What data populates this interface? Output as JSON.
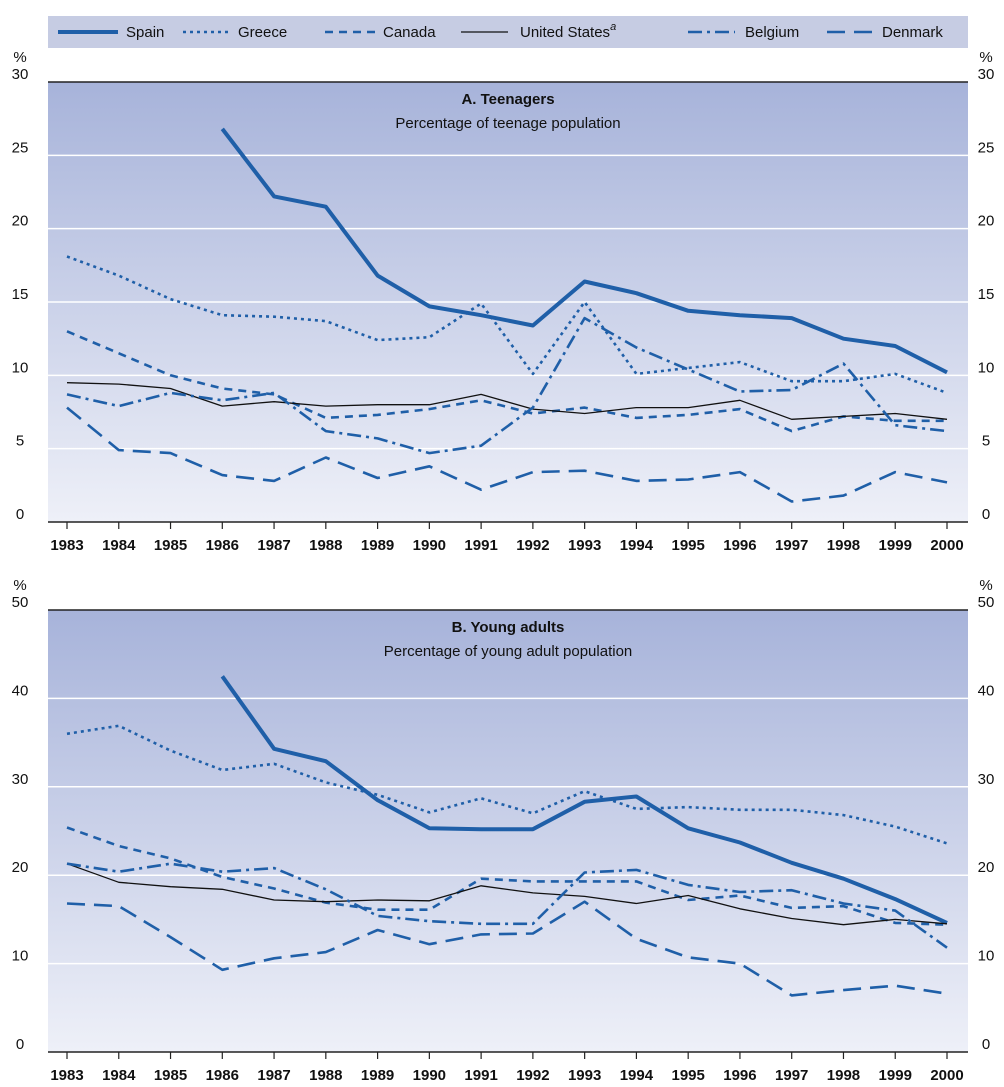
{
  "chart_data": [
    {
      "type": "line",
      "title": "A.  Teenagers",
      "subtitle": "Percentage of teenage population",
      "y_unit": "%",
      "categories": [
        "1983",
        "1984",
        "1985",
        "1986",
        "1987",
        "1988",
        "1989",
        "1990",
        "1991",
        "1992",
        "1993",
        "1994",
        "1995",
        "1996",
        "1997",
        "1998",
        "1999",
        "2000"
      ],
      "ylim": [
        0,
        30
      ],
      "yticks": [
        0,
        5,
        10,
        15,
        20,
        25,
        30
      ],
      "grid": true,
      "series": [
        {
          "name": "Spain",
          "color": "#1f5fa8",
          "style": "solid",
          "values": [
            null,
            null,
            null,
            26.8,
            22.2,
            21.5,
            16.8,
            14.7,
            14.1,
            13.4,
            16.4,
            15.6,
            14.4,
            14.1,
            13.9,
            12.5,
            12.0,
            10.2
          ]
        },
        {
          "name": "Greece",
          "color": "#1f5fa8",
          "style": "dotted",
          "values": [
            18.1,
            16.8,
            15.2,
            14.1,
            14.0,
            13.7,
            12.4,
            12.6,
            14.9,
            10.1,
            15.0,
            10.1,
            10.5,
            10.9,
            9.6,
            9.6,
            10.1,
            8.8
          ]
        },
        {
          "name": "Canada",
          "color": "#1f5fa8",
          "style": "dashed",
          "values": [
            13.0,
            11.5,
            10.0,
            9.1,
            8.7,
            7.1,
            7.3,
            7.7,
            8.3,
            7.4,
            7.8,
            7.1,
            7.3,
            7.7,
            6.2,
            7.2,
            6.9,
            6.9
          ]
        },
        {
          "name": "United States",
          "name_note": "a",
          "color": "#111111",
          "style": "thin",
          "values": [
            9.5,
            9.4,
            9.1,
            7.9,
            8.2,
            7.9,
            8.0,
            8.0,
            8.7,
            7.7,
            7.4,
            7.8,
            7.8,
            8.3,
            7.0,
            7.2,
            7.4,
            7.0
          ]
        },
        {
          "name": "Belgium",
          "color": "#1f5fa8",
          "style": "dashdot",
          "values": [
            8.7,
            7.9,
            8.8,
            8.3,
            8.8,
            6.2,
            5.7,
            4.7,
            5.2,
            7.8,
            13.9,
            11.9,
            10.4,
            8.9,
            9.0,
            10.8,
            6.6,
            6.2
          ]
        },
        {
          "name": "Denmark",
          "color": "#1f5fa8",
          "style": "longdash",
          "values": [
            7.8,
            4.9,
            4.7,
            3.2,
            2.8,
            4.4,
            3.0,
            3.8,
            2.2,
            3.4,
            3.5,
            2.8,
            2.9,
            3.4,
            1.4,
            1.8,
            3.4,
            2.7
          ]
        }
      ]
    },
    {
      "type": "line",
      "title": "B.  Young adults",
      "subtitle": "Percentage of young adult population",
      "y_unit": "%",
      "categories": [
        "1983",
        "1984",
        "1985",
        "1986",
        "1987",
        "1988",
        "1989",
        "1990",
        "1991",
        "1992",
        "1993",
        "1994",
        "1995",
        "1996",
        "1997",
        "1998",
        "1999",
        "2000"
      ],
      "ylim": [
        0,
        50
      ],
      "yticks": [
        0,
        10,
        20,
        30,
        40,
        50
      ],
      "grid": true,
      "series": [
        {
          "name": "Spain",
          "color": "#1f5fa8",
          "style": "solid",
          "values": [
            null,
            null,
            null,
            42.5,
            34.3,
            32.9,
            28.5,
            25.3,
            25.2,
            25.2,
            28.3,
            28.9,
            25.3,
            23.7,
            21.4,
            19.6,
            17.3,
            14.6
          ]
        },
        {
          "name": "Greece",
          "color": "#1f5fa8",
          "style": "dotted",
          "values": [
            36.0,
            36.9,
            34.1,
            31.9,
            32.6,
            30.5,
            29.1,
            27.1,
            28.7,
            27.0,
            29.5,
            27.5,
            27.7,
            27.4,
            27.4,
            26.8,
            25.5,
            23.6
          ]
        },
        {
          "name": "Canada",
          "color": "#1f5fa8",
          "style": "dashed",
          "values": [
            25.4,
            23.3,
            21.9,
            19.8,
            18.5,
            16.9,
            16.1,
            16.1,
            19.6,
            19.3,
            19.3,
            19.3,
            17.2,
            17.7,
            16.3,
            16.5,
            14.6,
            14.4
          ]
        },
        {
          "name": "United States",
          "name_note": "a",
          "color": "#111111",
          "style": "thin",
          "values": [
            21.3,
            19.2,
            18.7,
            18.4,
            17.2,
            17.0,
            17.2,
            17.1,
            18.8,
            18.0,
            17.6,
            16.8,
            17.7,
            16.2,
            15.1,
            14.4,
            15.0,
            14.5
          ]
        },
        {
          "name": "Belgium",
          "color": "#1f5fa8",
          "style": "dashdot",
          "values": [
            21.3,
            20.4,
            21.3,
            20.4,
            20.8,
            18.4,
            15.4,
            14.8,
            14.5,
            14.5,
            20.3,
            20.6,
            18.9,
            18.1,
            18.3,
            16.8,
            16.0,
            11.8
          ]
        },
        {
          "name": "Denmark",
          "color": "#1f5fa8",
          "style": "longdash",
          "values": [
            16.8,
            16.5,
            13.0,
            9.3,
            10.6,
            11.3,
            13.8,
            12.2,
            13.3,
            13.4,
            17.0,
            12.8,
            10.7,
            10.0,
            6.4,
            7.0,
            7.5,
            6.6
          ]
        }
      ]
    }
  ]
}
